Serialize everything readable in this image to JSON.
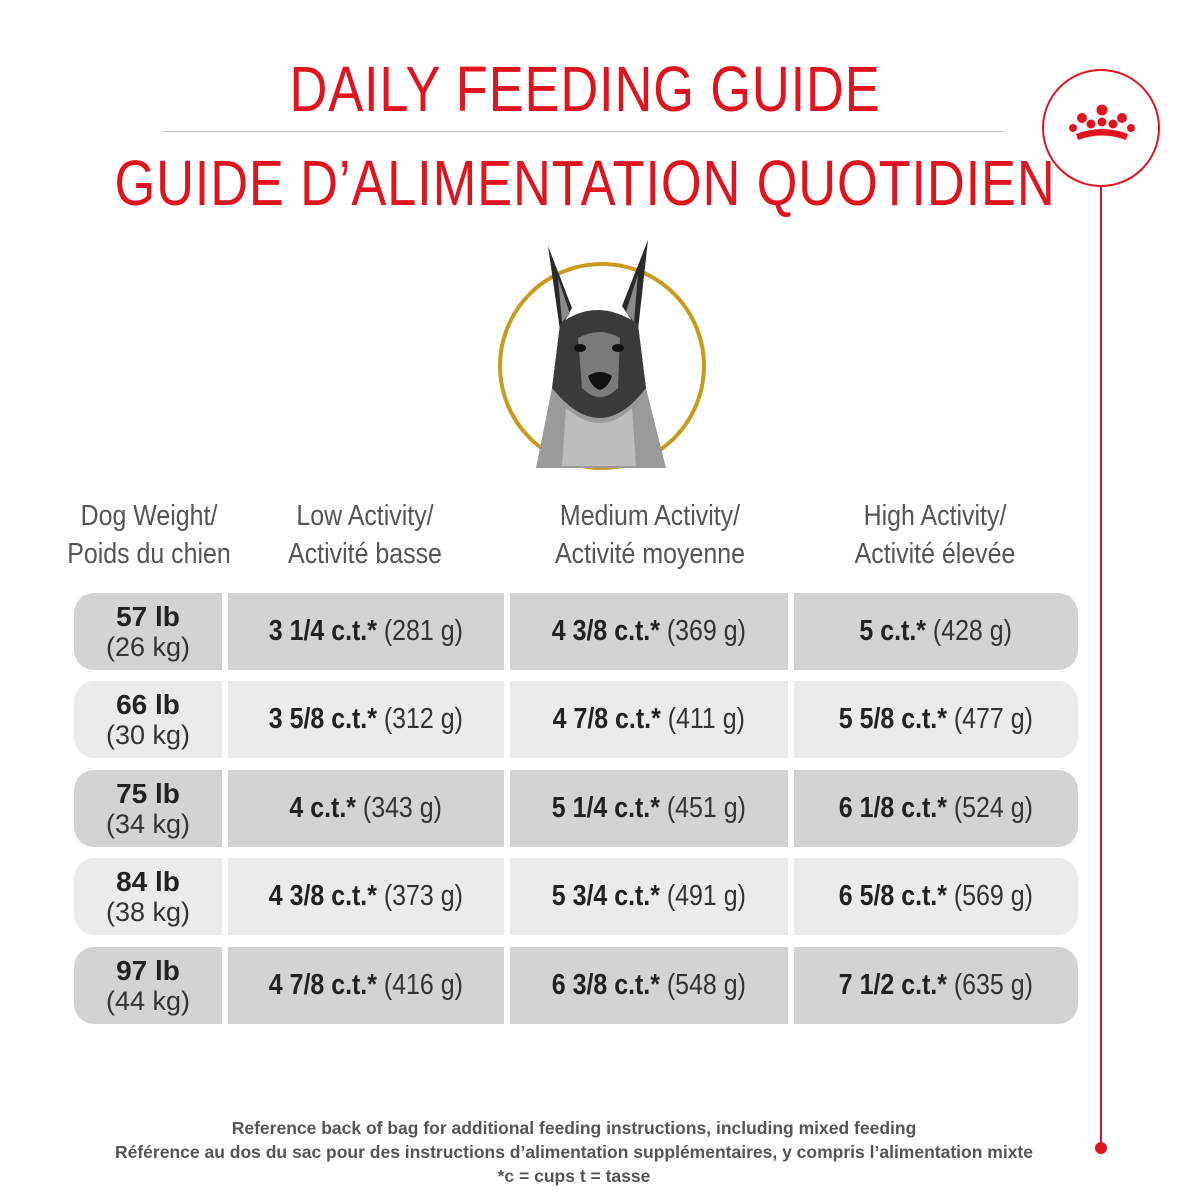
{
  "title_en": "DAILY FEEDING GUIDE",
  "title_fr": "GUIDE D’ALIMENTATION QUOTIDIEN",
  "brand_icon": "crown-icon",
  "accent_color": "#e0141e",
  "ring_color": "#c99a1c",
  "headers": {
    "weight": [
      "Dog Weight/",
      "Poids du chien"
    ],
    "low": [
      "Low Activity/",
      "Activité basse"
    ],
    "medium": [
      "Medium Activity/",
      "Activité moyenne"
    ],
    "high": [
      "High Activity/",
      "Activité élevée"
    ]
  },
  "rows": [
    {
      "lb": "57 lb",
      "kg": "(26 kg)",
      "low": "3 1/4 c.t.*",
      "low_g": "(281 g)",
      "medium": "4 3/8 c.t.*",
      "medium_g": "(369 g)",
      "high": "5 c.t.*",
      "high_g": "(428 g)"
    },
    {
      "lb": "66 lb",
      "kg": "(30 kg)",
      "low": "3 5/8 c.t.*",
      "low_g": "(312 g)",
      "medium": "4 7/8 c.t.*",
      "medium_g": "(411 g)",
      "high": "5 5/8 c.t.*",
      "high_g": "(477 g)"
    },
    {
      "lb": "75 lb",
      "kg": "(34 kg)",
      "low": "4 c.t.*",
      "low_g": "(343 g)",
      "medium": "5 1/4 c.t.*",
      "medium_g": "(451 g)",
      "high": "6 1/8 c.t.*",
      "high_g": "(524 g)"
    },
    {
      "lb": "84 lb",
      "kg": "(38 kg)",
      "low": "4 3/8 c.t.*",
      "low_g": "(373 g)",
      "medium": "5 3/4 c.t.*",
      "medium_g": "(491 g)",
      "high": "6 5/8 c.t.*",
      "high_g": "(569 g)"
    },
    {
      "lb": "97 lb",
      "kg": "(44 kg)",
      "low": "4 7/8 c.t.*",
      "low_g": "(416 g)",
      "medium": "6 3/8 c.t.*",
      "medium_g": "(548 g)",
      "high": "7 1/2 c.t.*",
      "high_g": "(635 g)"
    }
  ],
  "footer": [
    "Reference back of bag for additional feeding instructions, including mixed feeding",
    "Référence au dos du sac pour des instructions d’alimentation supplémentaires, y compris l’alimentation mixte",
    "*c = cups t = tasse"
  ]
}
